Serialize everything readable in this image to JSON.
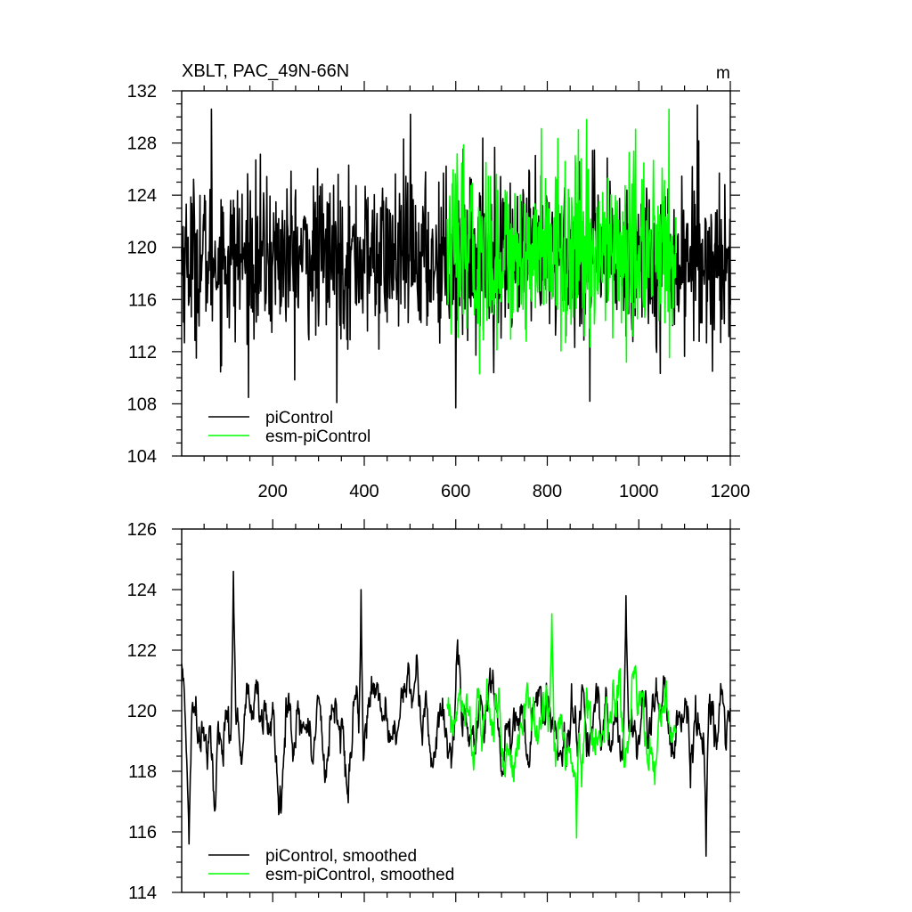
{
  "chart_data": [
    {
      "type": "line",
      "title": "XBLT, PAC_49N-66N",
      "units": "m",
      "xlim": [
        1,
        1200
      ],
      "ylim": [
        104,
        132
      ],
      "x_ticks": [
        200,
        400,
        600,
        800,
        1000,
        1200
      ],
      "y_ticks": [
        104,
        108,
        112,
        116,
        120,
        124,
        128,
        132
      ],
      "legend_position": "bottom-left",
      "series": [
        {
          "name": "piControl",
          "color": "#000000",
          "x_range": [
            1,
            1200
          ],
          "mean": 119.2,
          "amplitude": 3.4,
          "peaks": [
            {
              "x": 66,
              "y": 130.6
            },
            {
              "x": 340,
              "y": 108.1
            },
            {
              "x": 501,
              "y": 130.2
            },
            {
              "x": 600,
              "y": 107.7
            },
            {
              "x": 893,
              "y": 108.2
            },
            {
              "x": 1128,
              "y": 130.9
            },
            {
              "x": 1161,
              "y": 110.5
            }
          ]
        },
        {
          "name": "esm-piControl",
          "color": "#00ff00",
          "x_range": [
            581,
            1081
          ],
          "mean": 119.6,
          "amplitude": 3.6,
          "peaks": [
            {
              "x": 787,
              "y": 129.1
            },
            {
              "x": 886,
              "y": 129.8
            },
            {
              "x": 1066,
              "y": 130.6
            },
            {
              "x": 652,
              "y": 110.3
            },
            {
              "x": 973,
              "y": 111.2
            }
          ]
        }
      ]
    },
    {
      "type": "line",
      "title": "",
      "xlim": [
        1,
        1200
      ],
      "ylim": [
        114,
        126
      ],
      "y_ticks": [
        114,
        116,
        118,
        120,
        122,
        124,
        126
      ],
      "legend_position": "bottom-left",
      "series": [
        {
          "name": "piControl, smoothed",
          "color": "#000000",
          "x_range": [
            1,
            1200
          ],
          "mean": 119.5,
          "amplitude": 1.4,
          "peaks": [
            {
              "x": 114,
              "y": 124.6
            },
            {
              "x": 17,
              "y": 115.6
            },
            {
              "x": 393,
              "y": 124.0
            },
            {
              "x": 1147,
              "y": 115.2
            },
            {
              "x": 972,
              "y": 123.8
            }
          ]
        },
        {
          "name": "esm-piControl, smoothed",
          "color": "#00ff00",
          "x_range": [
            581,
            1081
          ],
          "mean": 119.5,
          "amplitude": 1.4,
          "peaks": [
            {
              "x": 810,
              "y": 123.2
            },
            {
              "x": 864,
              "y": 115.8
            }
          ]
        }
      ]
    }
  ]
}
